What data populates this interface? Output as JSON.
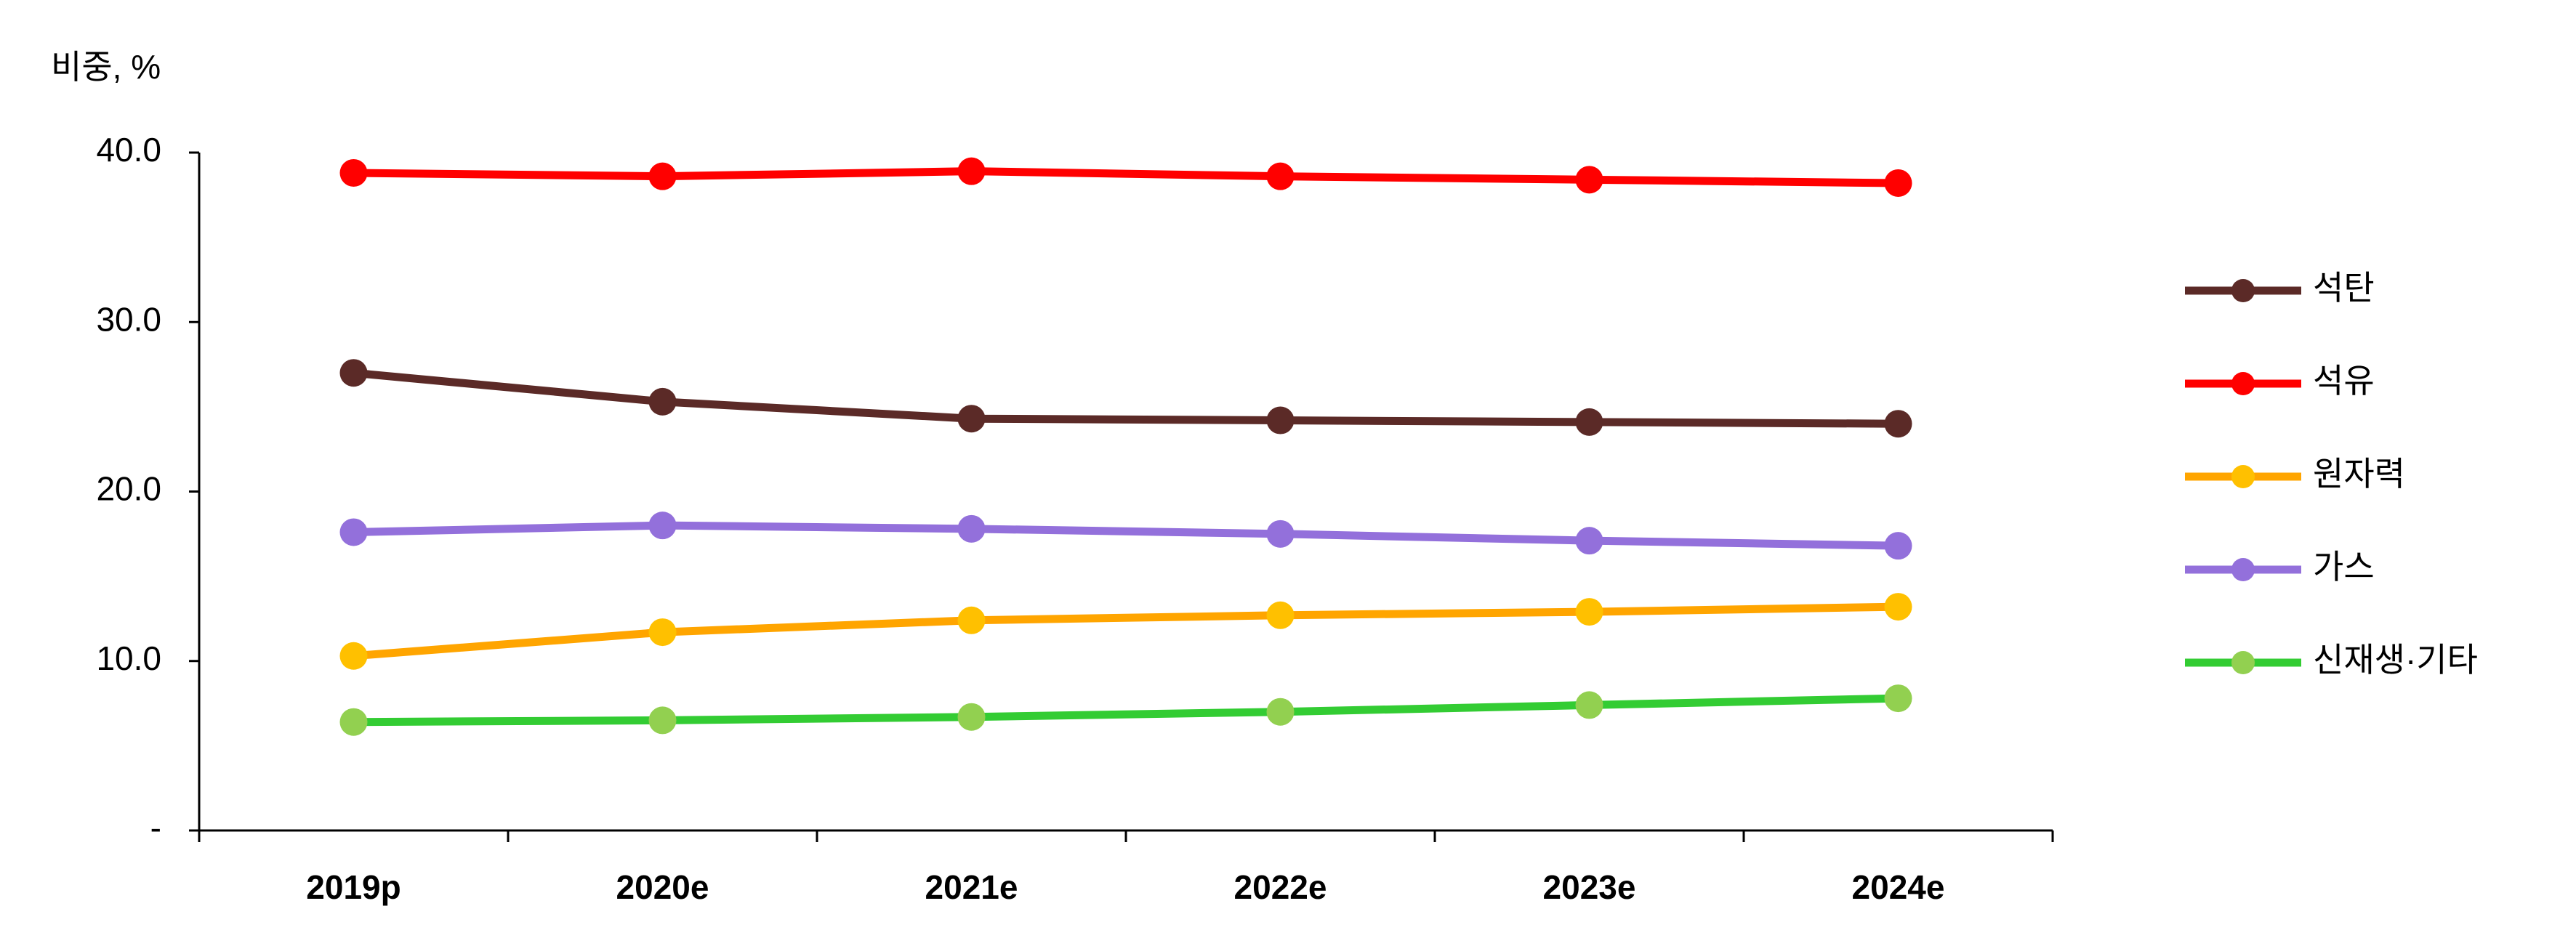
{
  "chart_data": {
    "type": "line",
    "y_label": "비중, %",
    "categories": [
      "2019p",
      "2020e",
      "2021e",
      "2022e",
      "2023e",
      "2024e"
    ],
    "ylim": [
      0,
      40
    ],
    "yticks": [
      {
        "value": 0,
        "label": "-"
      },
      {
        "value": 10,
        "label": "10.0"
      },
      {
        "value": 20,
        "label": "20.0"
      },
      {
        "value": 30,
        "label": "30.0"
      },
      {
        "value": 40,
        "label": "40.0"
      }
    ],
    "legend": "right",
    "series": [
      {
        "name": "석탄",
        "color": "#5b2a27",
        "marker_color": "#5b2a27",
        "values": [
          27.0,
          25.3,
          24.3,
          24.2,
          24.1,
          24.0
        ]
      },
      {
        "name": "석유",
        "color": "#ff0000",
        "marker_color": "#ff0000",
        "values": [
          38.8,
          38.6,
          38.9,
          38.6,
          38.4,
          38.2
        ]
      },
      {
        "name": "원자력",
        "color": "#ffa500",
        "marker_color": "#ffc000",
        "values": [
          10.3,
          11.7,
          12.4,
          12.7,
          12.9,
          13.2
        ]
      },
      {
        "name": "가스",
        "color": "#9370db",
        "marker_color": "#9370db",
        "values": [
          17.6,
          18.0,
          17.8,
          17.5,
          17.1,
          16.8
        ]
      },
      {
        "name": "신재생·기타",
        "color": "#33cc33",
        "marker_color": "#92d050",
        "values": [
          6.4,
          6.5,
          6.7,
          7.0,
          7.4,
          7.8
        ]
      }
    ]
  }
}
